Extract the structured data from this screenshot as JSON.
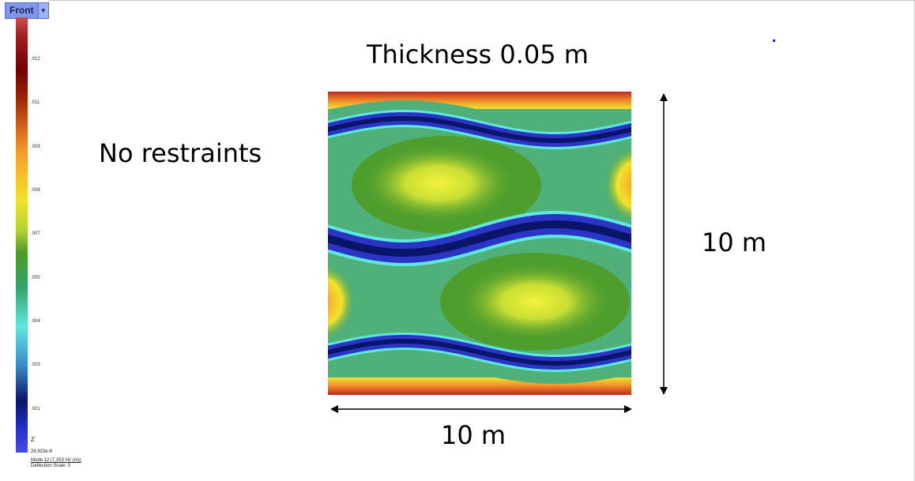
{
  "view": {
    "name": "Front",
    "dropdown_icon": "chevron-down-icon"
  },
  "legend": {
    "ticks": [
      ".012",
      ".011",
      ".009",
      ".008",
      ".007",
      ".005",
      ".004",
      ".003",
      ".001"
    ],
    "axis": "Z",
    "min_value": "26.923e-6",
    "mode": "Mode 12 (7.353 Hz (m))",
    "deflection_scale": "Deflection Scale: 0"
  },
  "annotations": {
    "title": "Thickness 0.05 m",
    "restraints": "No restraints",
    "height": "10 m",
    "width": "10 m"
  },
  "colors": {
    "red": "#b2182b",
    "orange": "#f59b2a",
    "yellow": "#f3e32d",
    "green": "#4f9a28",
    "cyan": "#5ee8e0",
    "navy": "#0a1569",
    "blue": "#2a35c6"
  }
}
